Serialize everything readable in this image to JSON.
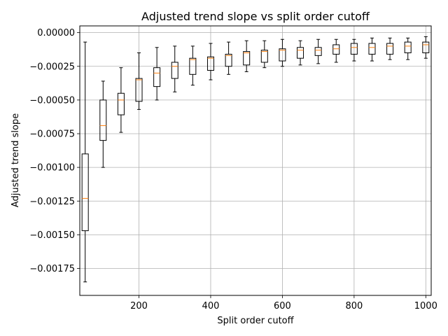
{
  "chart_data": {
    "type": "box",
    "title": "Adjusted trend slope vs split order cutoff",
    "xlabel": "Split order cutoff",
    "ylabel": "Adjusted trend slope",
    "xlim": [
      35,
      1015
    ],
    "ylim": [
      -0.00195,
      5e-05
    ],
    "xticks": [
      200,
      400,
      600,
      800,
      1000
    ],
    "yticks": [
      0.0,
      -0.00025,
      -0.0005,
      -0.00075,
      -0.001,
      -0.00125,
      -0.0015,
      -0.00175
    ],
    "ytick_labels": [
      "0.00000",
      "−0.00025",
      "−0.00050",
      "−0.00075",
      "−0.00100",
      "−0.00125",
      "−0.00150",
      "−0.00175"
    ],
    "xtick_labels": [
      "200",
      "400",
      "600",
      "800",
      "1000"
    ],
    "grid": true,
    "colors": {
      "box": "#000000",
      "median": "#ff7f0e",
      "grid": "#b0b0b0"
    },
    "boxes": [
      {
        "x": 50,
        "whisker_low": -0.00185,
        "q1": -0.00147,
        "median": -0.00123,
        "q3": -0.0009,
        "whisker_high": -7e-05
      },
      {
        "x": 100,
        "whisker_low": -0.001,
        "q1": -0.0008,
        "median": -0.00069,
        "q3": -0.0005,
        "whisker_high": -0.00036
      },
      {
        "x": 150,
        "whisker_low": -0.00074,
        "q1": -0.00061,
        "median": -0.0005,
        "q3": -0.00045,
        "whisker_high": -0.00026
      },
      {
        "x": 200,
        "whisker_low": -0.00057,
        "q1": -0.00051,
        "median": -0.00035,
        "q3": -0.00034,
        "whisker_high": -0.00015
      },
      {
        "x": 250,
        "whisker_low": -0.0005,
        "q1": -0.0004,
        "median": -0.0003,
        "q3": -0.00026,
        "whisker_high": -0.00011
      },
      {
        "x": 300,
        "whisker_low": -0.00044,
        "q1": -0.00034,
        "median": -0.00025,
        "q3": -0.00022,
        "whisker_high": -0.0001
      },
      {
        "x": 350,
        "whisker_low": -0.00039,
        "q1": -0.00031,
        "median": -0.0002,
        "q3": -0.00019,
        "whisker_high": -0.0001
      },
      {
        "x": 400,
        "whisker_low": -0.00035,
        "q1": -0.00028,
        "median": -0.00019,
        "q3": -0.00018,
        "whisker_high": -8e-05
      },
      {
        "x": 450,
        "whisker_low": -0.00031,
        "q1": -0.00025,
        "median": -0.00017,
        "q3": -0.00016,
        "whisker_high": -7e-05
      },
      {
        "x": 500,
        "whisker_low": -0.00029,
        "q1": -0.00024,
        "median": -0.00015,
        "q3": -0.00014,
        "whisker_high": -6e-05
      },
      {
        "x": 550,
        "whisker_low": -0.00026,
        "q1": -0.00022,
        "median": -0.00014,
        "q3": -0.00013,
        "whisker_high": -6e-05
      },
      {
        "x": 600,
        "whisker_low": -0.00025,
        "q1": -0.00021,
        "median": -0.00013,
        "q3": -0.00012,
        "whisker_high": -5e-05
      },
      {
        "x": 650,
        "whisker_low": -0.00024,
        "q1": -0.00019,
        "median": -0.00013,
        "q3": -0.00011,
        "whisker_high": -6e-05
      },
      {
        "x": 700,
        "whisker_low": -0.00023,
        "q1": -0.00017,
        "median": -0.00013,
        "q3": -0.00011,
        "whisker_high": -5e-05
      },
      {
        "x": 750,
        "whisker_low": -0.00022,
        "q1": -0.00016,
        "median": -0.00012,
        "q3": -9e-05,
        "whisker_high": -5e-05
      },
      {
        "x": 800,
        "whisker_low": -0.00021,
        "q1": -0.00016,
        "median": -0.00011,
        "q3": -8e-05,
        "whisker_high": -5e-05
      },
      {
        "x": 850,
        "whisker_low": -0.00021,
        "q1": -0.00016,
        "median": -0.00011,
        "q3": -8e-05,
        "whisker_high": -4e-05
      },
      {
        "x": 900,
        "whisker_low": -0.0002,
        "q1": -0.00016,
        "median": -0.0001,
        "q3": -8e-05,
        "whisker_high": -4e-05
      },
      {
        "x": 950,
        "whisker_low": -0.0002,
        "q1": -0.00015,
        "median": -0.0001,
        "q3": -7e-05,
        "whisker_high": -4e-05
      },
      {
        "x": 1000,
        "whisker_low": -0.00019,
        "q1": -0.00015,
        "median": -9e-05,
        "q3": -7e-05,
        "whisker_high": -3e-05
      }
    ]
  }
}
